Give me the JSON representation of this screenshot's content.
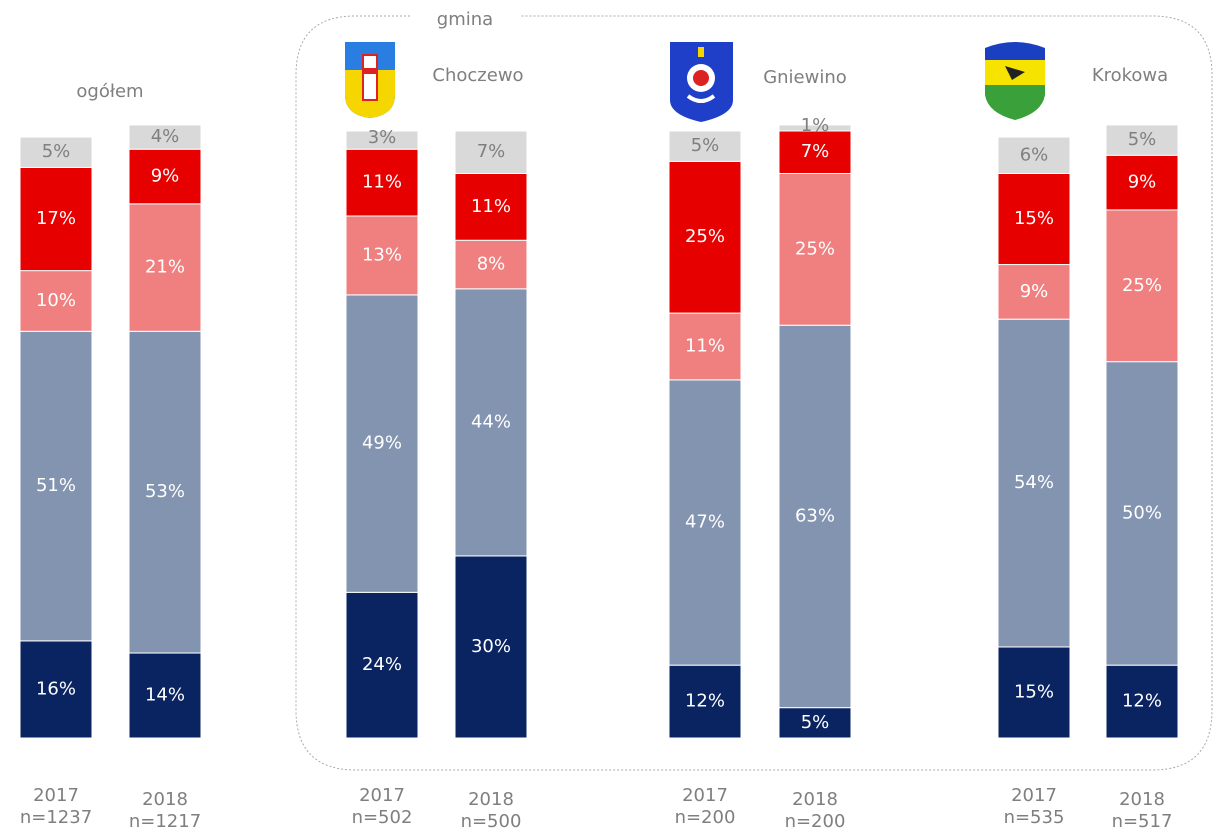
{
  "chart_data": {
    "type": "stacked_bar",
    "annotation": "gmina",
    "groups": [
      "ogółem",
      "Choczewo",
      "Gniewino",
      "Krokowa"
    ],
    "categories": [
      "2017",
      "2018",
      "2017",
      "2018",
      "2017",
      "2018",
      "2017",
      "2018"
    ],
    "sample_sizes": [
      "n=1237",
      "n=1217",
      "n=502",
      "n=500",
      "n=200",
      "n=200",
      "n=535",
      "n=517"
    ],
    "series": [
      {
        "color": "#0a2461",
        "values": [
          16,
          14,
          24,
          30,
          12,
          5,
          15,
          12
        ],
        "value_labels": [
          "16%",
          "14%",
          "24%",
          "30%",
          "12%",
          "5%",
          "15%",
          "12%"
        ]
      },
      {
        "color": "#8394b0",
        "values": [
          51,
          53,
          49,
          44,
          47,
          63,
          54,
          50
        ],
        "value_labels": [
          "51%",
          "53%",
          "49%",
          "44%",
          "47%",
          "63%",
          "54%",
          "50%"
        ]
      },
      {
        "color": "#f08080",
        "values": [
          10,
          21,
          13,
          8,
          11,
          25,
          9,
          25
        ],
        "value_labels": [
          "10%",
          "21%",
          "13%",
          "8%",
          "11%",
          "25%",
          "9%",
          "25%"
        ]
      },
      {
        "color": "#e60000",
        "values": [
          17,
          9,
          11,
          11,
          25,
          7,
          15,
          9
        ],
        "value_labels": [
          "17%",
          "9%",
          "11%",
          "11%",
          "25%",
          "7%",
          "15%",
          "9%"
        ]
      },
      {
        "color": "#d9d9d9",
        "values": [
          5,
          4,
          3,
          7,
          5,
          1,
          6,
          5
        ],
        "value_labels": [
          "5%",
          "4%",
          "3%",
          "7%",
          "5%",
          "1%",
          "6%",
          "5%"
        ]
      }
    ]
  }
}
